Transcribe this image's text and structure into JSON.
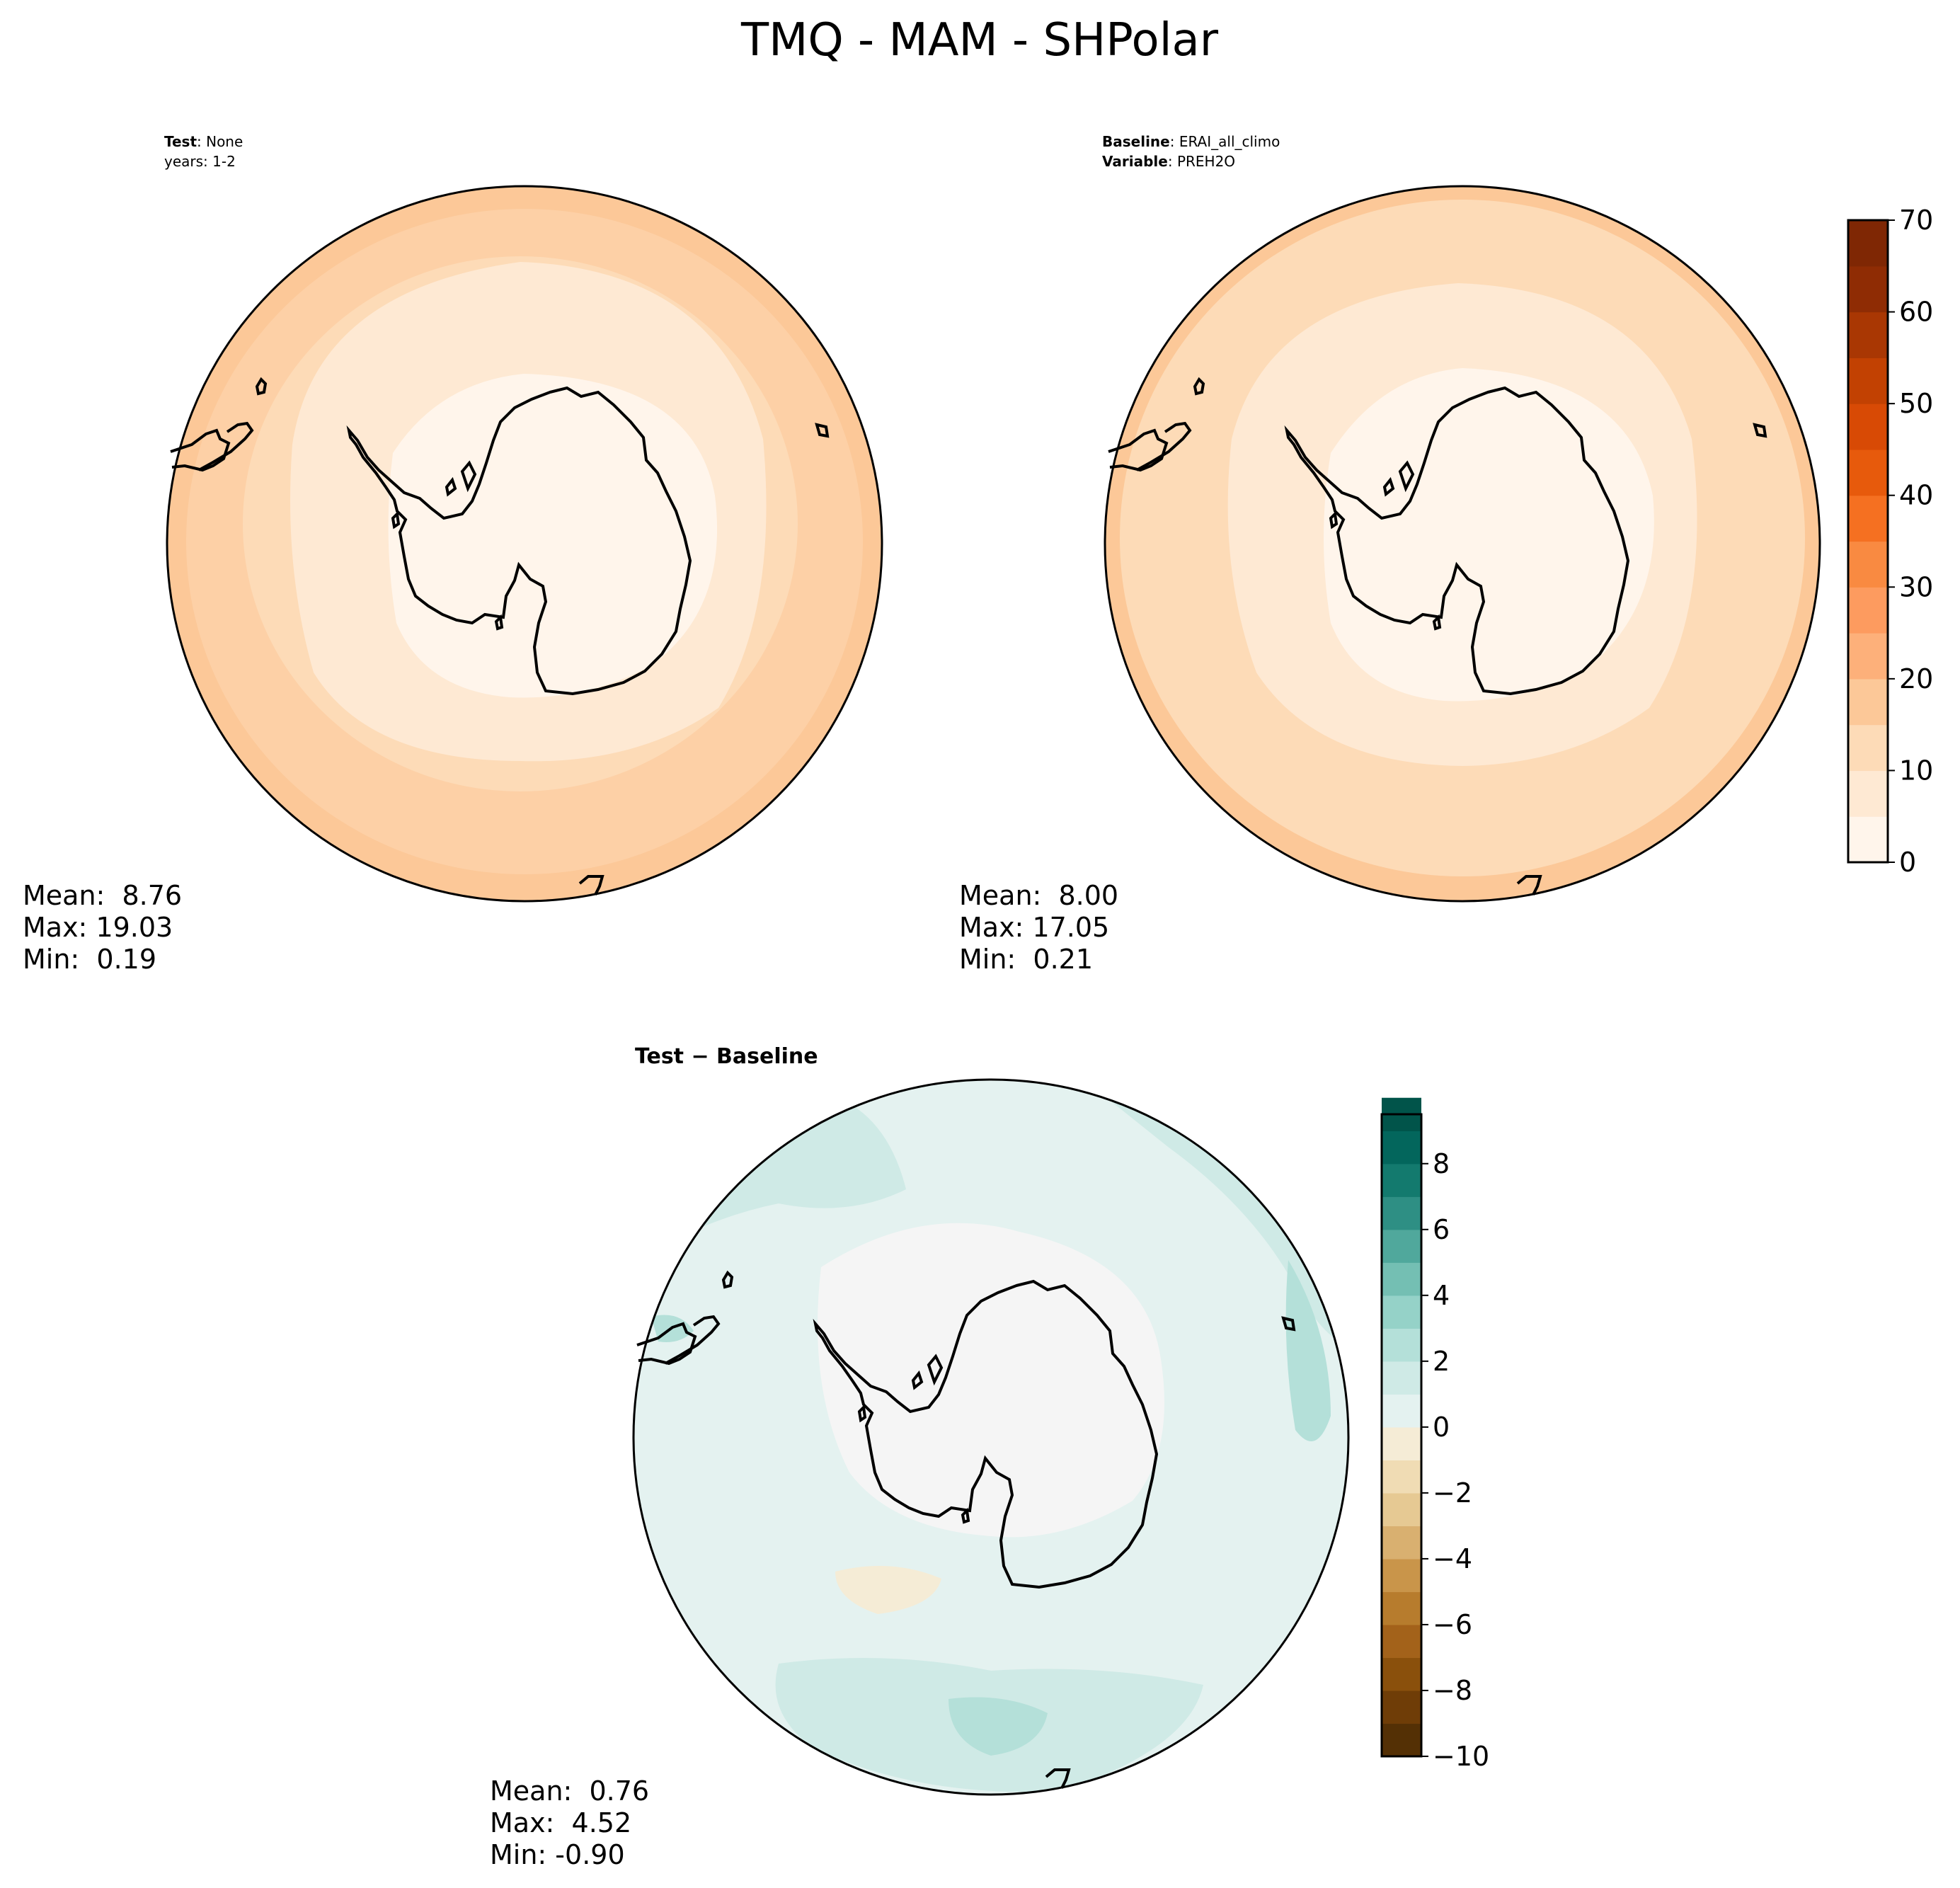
{
  "figure": {
    "title": "TMQ - MAM - SHPolar"
  },
  "colors": {
    "orange_levels": [
      "#fff5eb",
      "#fee9d3",
      "#fddbb7",
      "#fcc898",
      "#fdb07a",
      "#fd9b5f",
      "#f98a41",
      "#f57021",
      "#e75a0c",
      "#d84a05",
      "#c24102",
      "#a93703",
      "#8f2c04",
      "#7f2704"
    ],
    "diff_levels": [
      "#543005",
      "#6f3d07",
      "#8a500c",
      "#a3621a",
      "#b77c2d",
      "#c9954a",
      "#d9b070",
      "#e6c993",
      "#f0dcb4",
      "#f5ecd6",
      "#f5f5f5",
      "#e4f2f0",
      "#cfeae6",
      "#b4e0d9",
      "#95d2c8",
      "#74bfb3",
      "#50a89c",
      "#2e8f84",
      "#137a6e",
      "#03665c",
      "#01544a",
      "#003c30"
    ],
    "outline": "#000000"
  },
  "chart_data": [
    {
      "type": "heatmap",
      "panel": "test",
      "header_lines": [
        {
          "bold": "Test",
          "text": ": None"
        },
        {
          "bold": "",
          "text": "years: 1-2"
        }
      ],
      "stats": [
        "Mean:  8.76",
        "Max: 19.03",
        "Min:  0.19"
      ],
      "mean": 8.76,
      "max": 19.03,
      "min": 0.19,
      "contour_levels": [
        0,
        5,
        10,
        15,
        20
      ],
      "colormap": "orange"
    },
    {
      "type": "heatmap",
      "panel": "baseline",
      "header_lines": [
        {
          "bold": "Baseline",
          "text": ": ERAI_all_climo"
        },
        {
          "bold": "Variable",
          "text": ": PREH2O"
        }
      ],
      "stats": [
        "Mean:  8.00",
        "Max: 17.05",
        "Min:  0.21"
      ],
      "mean": 8.0,
      "max": 17.05,
      "min": 0.21,
      "contour_levels": [
        0,
        5,
        10,
        15,
        20
      ],
      "colormap": "orange",
      "colorbar": {
        "ticks": [
          0,
          10,
          20,
          30,
          40,
          50,
          60,
          70
        ],
        "tick_labels": [
          "0",
          "10",
          "20",
          "30",
          "40",
          "50",
          "60",
          "70"
        ],
        "range": [
          0,
          70
        ],
        "step": 5
      }
    },
    {
      "type": "heatmap",
      "panel": "difference",
      "header_lines": [
        {
          "bold": "Test − Baseline",
          "text": ""
        }
      ],
      "stats": [
        "Mean:  0.76",
        "Max:  4.52",
        "Min: -0.90"
      ],
      "mean": 0.76,
      "max": 4.52,
      "min": -0.9,
      "colormap": "diff",
      "colorbar": {
        "ticks": [
          -10,
          -8,
          -6,
          -4,
          -2,
          0,
          2,
          4,
          6,
          8
        ],
        "tick_labels": [
          "−10",
          "−8",
          "−6",
          "−4",
          "−2",
          "0",
          "2",
          "4",
          "6",
          "8"
        ],
        "range": [
          -10,
          9.5
        ],
        "step": 1
      }
    }
  ]
}
